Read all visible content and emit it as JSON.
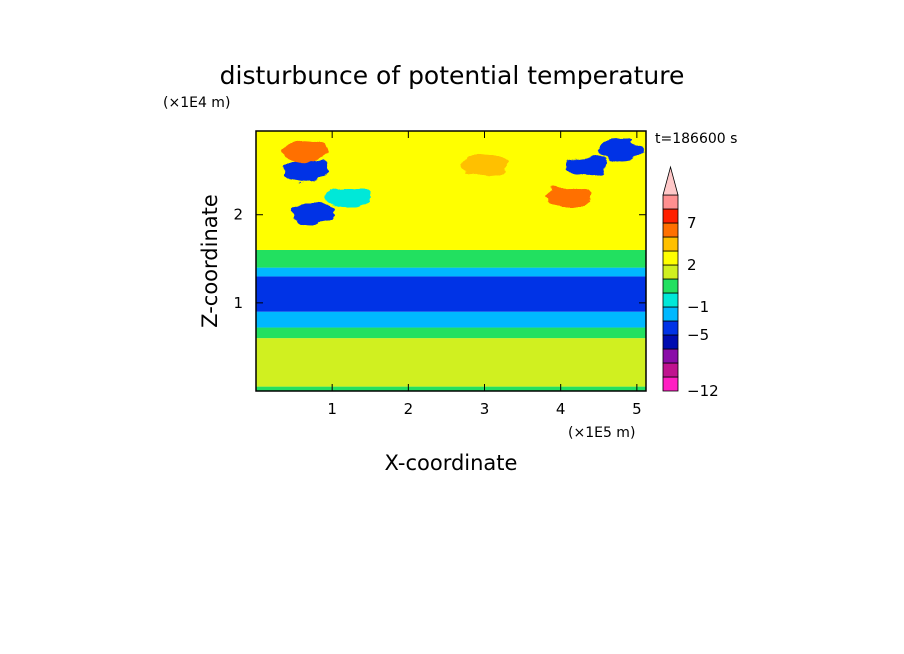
{
  "chart_data": {
    "type": "heatmap",
    "title": "disturbunce of potential temperature",
    "xlabel": "X-coordinate",
    "ylabel": "Z-coordinate",
    "x_unit": "(×1E5 m)",
    "y_unit": "(×1E4 m)",
    "time_label": "t=186600 s",
    "xlim": [
      0,
      5.12
    ],
    "ylim": [
      0,
      2.95
    ],
    "x_ticks": [
      1,
      2,
      3,
      4,
      5
    ],
    "y_ticks": [
      1,
      2
    ],
    "x_tick_labels": [
      "1",
      "2",
      "3",
      "4",
      "5"
    ],
    "y_tick_labels": [
      "1",
      "2"
    ],
    "colorbar": {
      "levels": [
        -12,
        -11,
        -9,
        -7,
        -5,
        -3,
        -1,
        0,
        1,
        2,
        3,
        5,
        7,
        9,
        11
      ],
      "labeled_levels": [
        -12,
        -5,
        -1,
        2,
        7
      ],
      "labels": [
        "−12",
        "−5",
        "−1",
        "2",
        "7"
      ],
      "colors": [
        "#ff1fc2",
        "#c0138f",
        "#8a0ca8",
        "#000cb0",
        "#0033e6",
        "#00b8ff",
        "#00e8d8",
        "#22e060",
        "#d0f020",
        "#ffff00",
        "#ffc000",
        "#ff7000",
        "#ff2000",
        "#ff9090",
        "#ffc8c8"
      ],
      "extend": "max"
    },
    "field_bands": [
      {
        "z": [
          0.0,
          0.05
        ],
        "value": 0.5
      },
      {
        "z": [
          0.05,
          0.6
        ],
        "value": 1.5
      },
      {
        "z": [
          0.6,
          0.72
        ],
        "value": 0.5
      },
      {
        "z": [
          0.72,
          0.9
        ],
        "value": -1.5
      },
      {
        "z": [
          0.9,
          1.3
        ],
        "value": -5
      },
      {
        "z": [
          1.3,
          1.4
        ],
        "value": -1.5
      },
      {
        "z": [
          1.4,
          1.6
        ],
        "value": 0.5
      },
      {
        "z": [
          1.6,
          2.95
        ],
        "value": 2
      }
    ],
    "features": [
      {
        "x": 4.35,
        "z": 2.55,
        "value": -5
      },
      {
        "x": 4.8,
        "z": 2.73,
        "value": -5
      },
      {
        "x": 4.1,
        "z": 2.2,
        "value": 5
      },
      {
        "x": 0.65,
        "z": 2.72,
        "value": 5
      },
      {
        "x": 0.75,
        "z": 2.02,
        "value": -5
      },
      {
        "x": 0.65,
        "z": 2.5,
        "value": -5
      },
      {
        "x": 3.0,
        "z": 2.55,
        "value": 4
      },
      {
        "x": 1.2,
        "z": 2.2,
        "value": -1
      }
    ]
  }
}
